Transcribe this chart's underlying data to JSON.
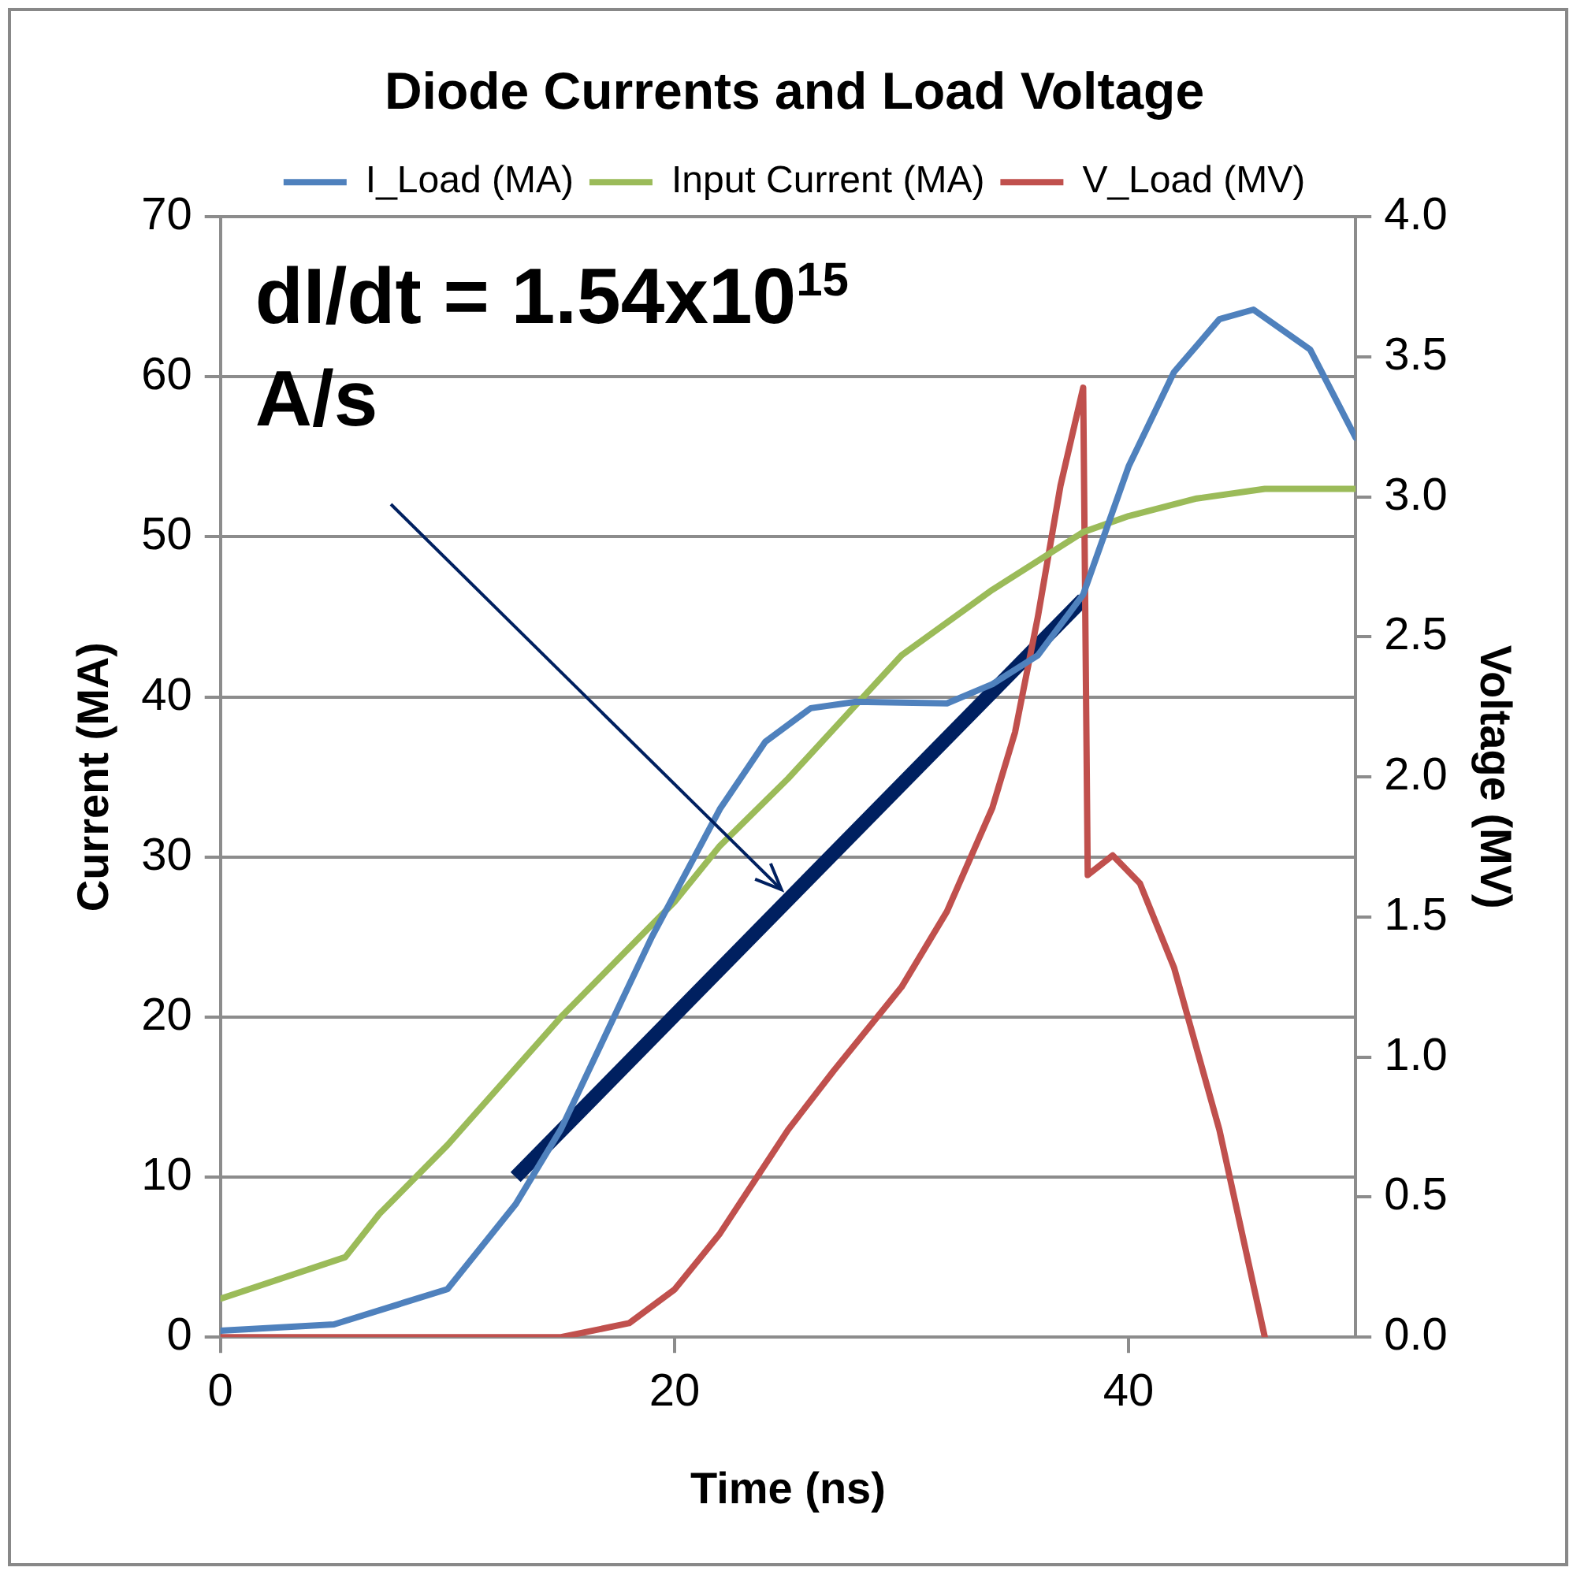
{
  "chart_data": {
    "type": "line",
    "title": "Diode Currents and Load Voltage",
    "xlabel": "Time (ns)",
    "ylabel": "Current (MA)",
    "y2label": "Voltage (MV)",
    "xlim": [
      0,
      50
    ],
    "xticks": [
      0,
      20,
      40
    ],
    "ylim": [
      0,
      70
    ],
    "yticks": [
      0,
      10,
      20,
      30,
      40,
      50,
      60,
      70
    ],
    "y2lim": [
      0,
      4
    ],
    "y2ticks": [
      {
        "value": 0,
        "label": "0.0"
      },
      {
        "value": 0.5,
        "label": "0.5"
      },
      {
        "value": 1,
        "label": "1.0"
      },
      {
        "value": 1.5,
        "label": "1.5"
      },
      {
        "value": 2,
        "label": "2.0"
      },
      {
        "value": 2.5,
        "label": "2.5"
      },
      {
        "value": 3,
        "label": "3.0"
      },
      {
        "value": 3.5,
        "label": "3.5"
      },
      {
        "value": 4,
        "label": "4.0"
      }
    ],
    "grid": "y",
    "legend": "top",
    "marker": "none",
    "line_style": "solid",
    "annotations": [
      "dI/dt = 1.54x10$^{15}$ A/s"
    ],
    "series": [
      {
        "name": "I_Load (MA)",
        "color": "#4f81bd",
        "x": [
          0,
          5,
          10,
          13,
          15,
          17,
          19,
          22,
          24,
          26,
          28,
          32,
          34,
          36,
          38,
          40,
          42,
          44,
          45.5,
          48,
          50
        ],
        "values": [
          0.4,
          0.8,
          3,
          8.3,
          13,
          19,
          25,
          33,
          37.2,
          39.3,
          39.7,
          39.6,
          40.8,
          42.6,
          46.4,
          54.4,
          60.3,
          63.6,
          64.2,
          61.7,
          56.2
        ]
      },
      {
        "name": "Input Current (MA)",
        "color": "#9bbb59",
        "x": [
          0,
          5.5,
          7,
          10,
          15,
          20,
          22,
          25,
          30,
          34,
          38,
          40,
          43,
          46,
          50
        ],
        "values": [
          2.4,
          5,
          7.7,
          12,
          20,
          27.2,
          30.7,
          34.9,
          42.6,
          46.7,
          50.3,
          51.3,
          52.4,
          53,
          53
        ]
      },
      {
        "name": "V_Load (MV)",
        "color": "#c0504d",
        "axis": "y2",
        "x": [
          0,
          15,
          18,
          20,
          22,
          25,
          27,
          30,
          32,
          34,
          35,
          36,
          37,
          38,
          38.2,
          39.3,
          40.5,
          42,
          44,
          46
        ],
        "values": [
          0,
          0,
          0.05,
          0.17,
          0.37,
          0.74,
          0.95,
          1.25,
          1.52,
          1.89,
          2.16,
          2.57,
          3.04,
          3.39,
          1.65,
          1.72,
          1.62,
          1.32,
          0.74,
          0
        ]
      },
      {
        "type": "line",
        "color": "#002060",
        "x": [
          13,
          38
        ],
        "values": [
          10,
          46.1
        ]
      }
    ]
  }
}
